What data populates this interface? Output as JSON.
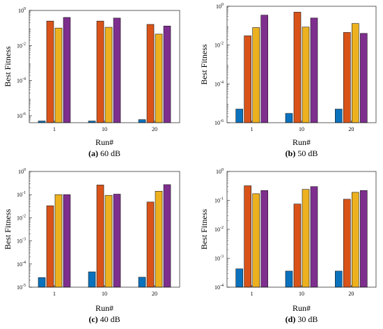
{
  "colors": {
    "series": [
      "#0a72bd",
      "#d95319",
      "#edb120",
      "#7e2f8e"
    ],
    "bar_stroke": "#1a1a1a",
    "axis": "#1a1a1a"
  },
  "chart_data": [
    {
      "type": "bar",
      "panel_letter": "(a)",
      "caption_text": "60 dB",
      "xlabel": "Run#",
      "ylabel": "Best Fitness",
      "yscale": "log",
      "ylim": [
        4e-07,
        1
      ],
      "categories": [
        "1",
        "10",
        "20"
      ],
      "ytick_values": [
        1e-06,
        0.0001,
        0.01,
        1
      ],
      "ytick_labels": [
        {
          "base": "10",
          "exp": "-6"
        },
        {
          "base": "10",
          "exp": "-4"
        },
        {
          "base": "10",
          "exp": "-2"
        },
        {
          "base": "10",
          "exp": "0"
        }
      ],
      "series": [
        {
          "values": [
            5e-07,
            5e-07,
            6e-07
          ]
        },
        {
          "values": [
            0.25,
            0.25,
            0.16
          ]
        },
        {
          "values": [
            0.1,
            0.11,
            0.045
          ]
        },
        {
          "values": [
            0.4,
            0.37,
            0.13
          ]
        }
      ]
    },
    {
      "type": "bar",
      "panel_letter": "(b)",
      "caption_text": "50 dB",
      "xlabel": "Run#",
      "ylabel": "Best Fitness",
      "yscale": "log",
      "ylim": [
        1e-06,
        1
      ],
      "categories": [
        "1",
        "10",
        "20"
      ],
      "ytick_values": [
        1e-06,
        0.0001,
        0.01,
        1
      ],
      "ytick_labels": [
        {
          "base": "10",
          "exp": "-6"
        },
        {
          "base": "10",
          "exp": "-4"
        },
        {
          "base": "10",
          "exp": "-2"
        },
        {
          "base": "10",
          "exp": "0"
        }
      ],
      "series": [
        {
          "values": [
            5e-06,
            3e-06,
            5e-06
          ]
        },
        {
          "values": [
            0.03,
            0.5,
            0.045
          ]
        },
        {
          "values": [
            0.08,
            0.085,
            0.13
          ]
        },
        {
          "values": [
            0.35,
            0.25,
            0.04
          ]
        }
      ]
    },
    {
      "type": "bar",
      "panel_letter": "(c)",
      "caption_text": "40 dB",
      "xlabel": "Run#",
      "ylabel": "Best Fitness",
      "yscale": "log",
      "ylim": [
        1e-05,
        1
      ],
      "categories": [
        "1",
        "10",
        "20"
      ],
      "ytick_values": [
        1e-05,
        0.0001,
        0.001,
        0.01,
        0.1,
        1
      ],
      "ytick_labels": [
        {
          "base": "10",
          "exp": "-5"
        },
        {
          "base": "10",
          "exp": "-4"
        },
        {
          "base": "10",
          "exp": "-3"
        },
        {
          "base": "10",
          "exp": "-2"
        },
        {
          "base": "10",
          "exp": "-1"
        },
        {
          "base": "10",
          "exp": "0"
        }
      ],
      "series": [
        {
          "values": [
            2.6e-05,
            4.6e-05,
            2.7e-05
          ]
        },
        {
          "values": [
            0.033,
            0.26,
            0.048
          ]
        },
        {
          "values": [
            0.1,
            0.093,
            0.14
          ]
        },
        {
          "values": [
            0.1,
            0.105,
            0.27
          ]
        }
      ]
    },
    {
      "type": "bar",
      "panel_letter": "(d)",
      "caption_text": "30 dB",
      "xlabel": "Run#",
      "ylabel": "Best Fitness",
      "yscale": "log",
      "ylim": [
        0.0001,
        1
      ],
      "categories": [
        "1",
        "10",
        "20"
      ],
      "ytick_values": [
        0.0001,
        0.001,
        0.01,
        0.1,
        1
      ],
      "ytick_labels": [
        {
          "base": "10",
          "exp": "-4"
        },
        {
          "base": "10",
          "exp": "-3"
        },
        {
          "base": "10",
          "exp": "-2"
        },
        {
          "base": "10",
          "exp": "-1"
        },
        {
          "base": "10",
          "exp": "0"
        }
      ],
      "series": [
        {
          "values": [
            0.00043,
            0.00036,
            0.00036
          ]
        },
        {
          "values": [
            0.32,
            0.075,
            0.11
          ]
        },
        {
          "values": [
            0.17,
            0.24,
            0.19
          ]
        },
        {
          "values": [
            0.22,
            0.3,
            0.22
          ]
        }
      ]
    }
  ]
}
